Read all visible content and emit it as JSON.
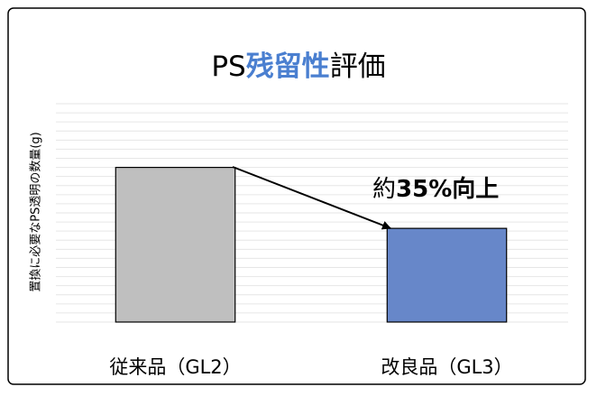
{
  "chart_data": {
    "type": "bar",
    "title_parts": [
      "PS",
      "残留性",
      "評価"
    ],
    "y_label": "置換に必要なPS透明の数量(g)",
    "annotation_parts": [
      "約",
      "35%向上"
    ],
    "categories": [
      "従来品（GL2）",
      "改良品（GL3）"
    ],
    "values": [
      17,
      10.3
    ],
    "colors": [
      "#bfbfbf",
      "#6787c9"
    ],
    "ylim": [
      0,
      24
    ],
    "yticks": [
      0,
      1,
      2,
      3,
      4,
      5,
      6,
      7,
      8,
      9,
      10,
      11,
      12,
      13,
      14,
      15,
      16,
      17,
      18,
      19,
      20,
      21,
      22,
      23,
      24
    ],
    "grid": true
  }
}
